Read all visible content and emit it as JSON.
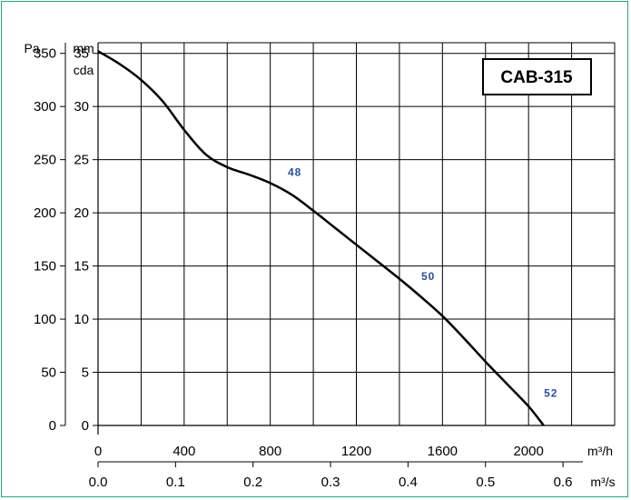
{
  "chart_data": {
    "type": "line",
    "title": "CAB-315",
    "y_left_unit": "Pa",
    "y_right_unit_line1": "mm",
    "y_right_unit_line2": "cda",
    "x_top_unit": "m³/h",
    "x_bottom_unit": "m³/s",
    "x_ticks_m3h": [
      0,
      400,
      800,
      1200,
      1600,
      2000
    ],
    "x_ticks_m3s": [
      "0.0",
      "0.1",
      "0.2",
      "0.3",
      "0.4",
      "0.5",
      "0.6"
    ],
    "y_ticks_pa": [
      0,
      50,
      100,
      150,
      200,
      250,
      300,
      350
    ],
    "y_ticks_mmcda": [
      0,
      5,
      10,
      15,
      20,
      25,
      30,
      35
    ],
    "xlim": [
      0,
      2400
    ],
    "ylim": [
      0,
      360
    ],
    "grid": true,
    "series": [
      {
        "x": [
          0,
          100,
          200,
          300,
          400,
          500,
          600,
          700,
          800,
          900,
          1000,
          1100,
          1200,
          1300,
          1400,
          1500,
          1600,
          1700,
          1800,
          1900,
          2000,
          2070
        ],
        "y": [
          352,
          340,
          325,
          305,
          278,
          255,
          243,
          236,
          228,
          217,
          202,
          186,
          170,
          154,
          138,
          121,
          103,
          82,
          60,
          39,
          18,
          0
        ]
      }
    ],
    "annotations": [
      {
        "text": "48",
        "x": 880,
        "y": 228
      },
      {
        "text": "50",
        "x": 1500,
        "y": 130
      },
      {
        "text": "52",
        "x": 2070,
        "y": 20
      }
    ]
  }
}
